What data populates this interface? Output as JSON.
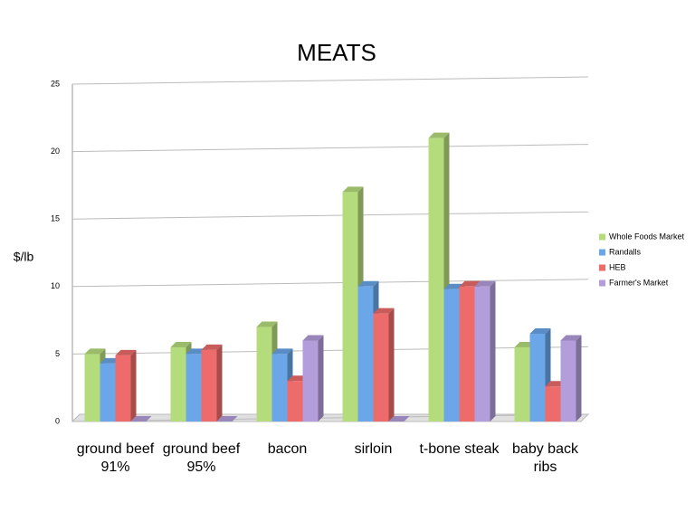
{
  "chart_data": {
    "type": "bar",
    "title": "MEATS",
    "y_label": "$/lb",
    "categories": [
      "ground beef 91%",
      "ground beef 95%",
      "bacon",
      "sirloin",
      "t-bone steak",
      "baby back ribs"
    ],
    "series": [
      {
        "name": "Whole Foods Market",
        "color": "#b5dc7c",
        "values": [
          5,
          5.5,
          7,
          17,
          21,
          5.5
        ]
      },
      {
        "name": "Randalls",
        "color": "#6aa6e8",
        "values": [
          4.3,
          5,
          5,
          10,
          9.8,
          6.5
        ]
      },
      {
        "name": "HEB",
        "color": "#ee6b6b",
        "values": [
          4.9,
          5.3,
          3,
          8,
          10,
          2.6
        ]
      },
      {
        "name": "Farmer's Market",
        "color": "#b39ddb",
        "values": [
          0,
          0,
          6,
          0,
          10,
          6
        ]
      }
    ],
    "ylim": [
      0,
      25
    ],
    "yticks": [
      0,
      5,
      10,
      15,
      20,
      25
    ],
    "grid": true,
    "legend": "right"
  }
}
